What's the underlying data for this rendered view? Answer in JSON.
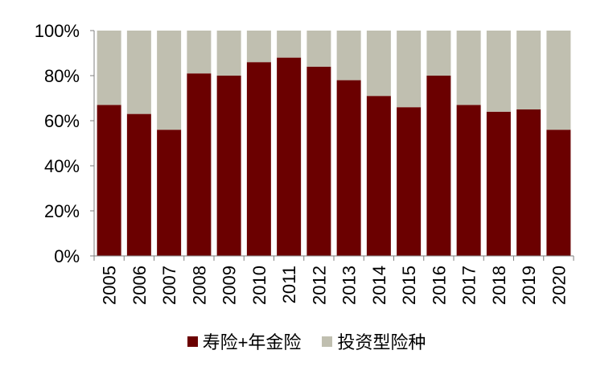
{
  "chart_data": {
    "type": "bar",
    "stacked": true,
    "percent_stacked": true,
    "categories": [
      "2005",
      "2006",
      "2007",
      "2008",
      "2009",
      "2010",
      "2011",
      "2012",
      "2013",
      "2014",
      "2015",
      "2016",
      "2017",
      "2018",
      "2019",
      "2020"
    ],
    "series": [
      {
        "name": "寿险+年金险",
        "color": "#6b0000",
        "values": [
          67,
          63,
          56,
          81,
          80,
          86,
          88,
          84,
          78,
          71,
          66,
          80,
          67,
          64,
          65,
          56
        ]
      },
      {
        "name": "投资型险种",
        "color": "#c0bfb0",
        "values": [
          33,
          37,
          44,
          19,
          20,
          14,
          12,
          16,
          22,
          29,
          34,
          20,
          33,
          36,
          35,
          44
        ]
      }
    ],
    "ylim": [
      0,
      100
    ],
    "yticks": [
      "0%",
      "20%",
      "40%",
      "60%",
      "80%",
      "100%"
    ],
    "legend_position": "bottom",
    "grid": false
  }
}
